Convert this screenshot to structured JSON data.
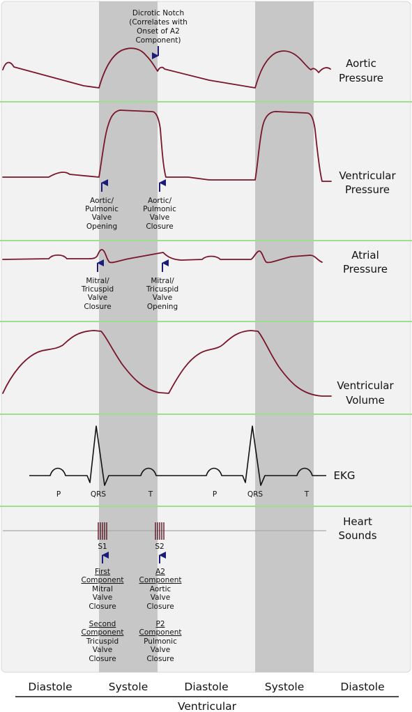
{
  "panels": {
    "aortic": {
      "line1": "Aortic",
      "line2": "Pressure"
    },
    "ventricular_pressure": {
      "line1": "Ventricular",
      "line2": "Pressure"
    },
    "atrial": {
      "line1": "Atrial",
      "line2": "Pressure"
    },
    "ventricular_volume": {
      "line1": "Ventricular",
      "line2": "Volume"
    },
    "ekg": {
      "label": "EKG"
    },
    "heart_sounds": {
      "line1": "Heart",
      "line2": "Sounds"
    }
  },
  "annotations": {
    "dicrotic_notch": [
      "Dicrotic Notch",
      "(Correlates with",
      "Onset of A2",
      "Component)"
    ],
    "av_opening": [
      "Aortic/",
      "Pulmonic",
      "Valve",
      "Opening"
    ],
    "av_closure": [
      "Aortic/",
      "Pulmonic",
      "Valve",
      "Closure"
    ],
    "mv_closure": [
      "Mitral/",
      "Tricuspid",
      "Valve",
      "Closure"
    ],
    "mv_opening": [
      "Mitral/",
      "Tricuspid",
      "Valve",
      "Opening"
    ]
  },
  "ekg_waves": [
    "P",
    "QRS",
    "T",
    "P",
    "QRS",
    "T"
  ],
  "sounds": {
    "s1": "S1",
    "s2": "S2",
    "s1_first": {
      "title": "First",
      "title2": "Component",
      "lines": [
        "Mitral",
        "Valve",
        "Closure"
      ]
    },
    "s1_second": {
      "title": "Second",
      "title2": "Component",
      "lines": [
        "Tricuspid",
        "Valve",
        "Closure"
      ]
    },
    "s2_first": {
      "title": "A2",
      "title2": "Component",
      "lines": [
        "Aortic",
        "Valve",
        "Closure"
      ]
    },
    "s2_second": {
      "title": "P2",
      "title2": "Component",
      "lines": [
        "Pulmonic",
        "Valve",
        "Closure"
      ]
    }
  },
  "phases": [
    "Diastole",
    "Systole",
    "Diastole",
    "Systole",
    "Diastole"
  ],
  "footer": "Ventricular",
  "colors": {
    "panel_bg": "#f2f2f2",
    "systole_band": "#c7c7c7",
    "separator": "#9be08c",
    "curve": "#7a1428",
    "arrow": "#1b1c7a"
  }
}
